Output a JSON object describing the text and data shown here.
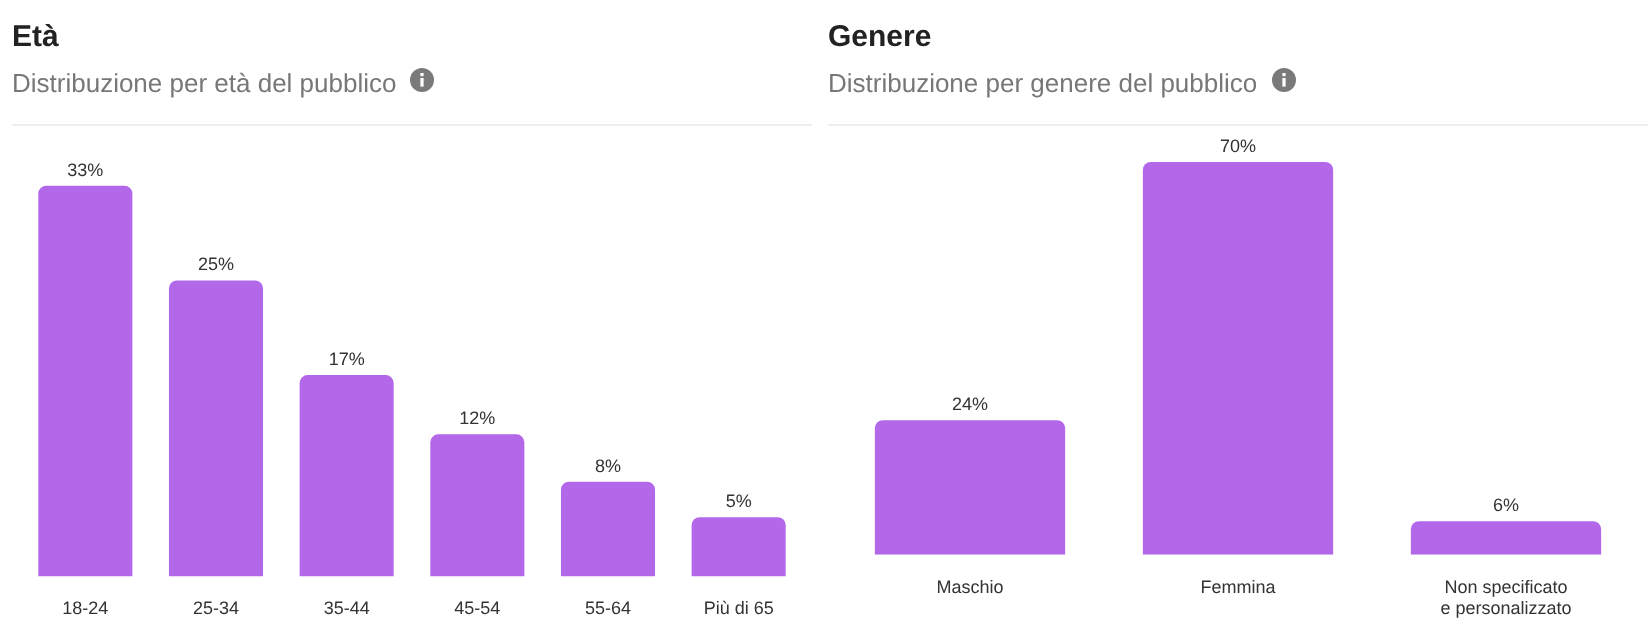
{
  "chart_data": [
    {
      "type": "bar",
      "title": "Età",
      "subtitle": "Distribuzione per età del pubblico",
      "categories": [
        "18-24",
        "25-34",
        "35-44",
        "45-54",
        "55-64",
        "Più di 65"
      ],
      "values": [
        33,
        25,
        17,
        12,
        8,
        5
      ],
      "value_labels": [
        "33%",
        "25%",
        "17%",
        "12%",
        "8%",
        "5%"
      ],
      "color": "#b368ea",
      "grid": false,
      "legend": false,
      "tick_labels": "x"
    },
    {
      "type": "bar",
      "title": "Genere",
      "subtitle": "Distribuzione per genere del pubblico",
      "categories": [
        "Maschio",
        "Femmina",
        "Non specificato e personalizzato"
      ],
      "values": [
        24,
        70,
        6
      ],
      "value_labels": [
        "24%",
        "70%",
        "6%"
      ],
      "color": "#b368ea",
      "grid": false,
      "legend": false,
      "tick_labels": "x"
    }
  ]
}
